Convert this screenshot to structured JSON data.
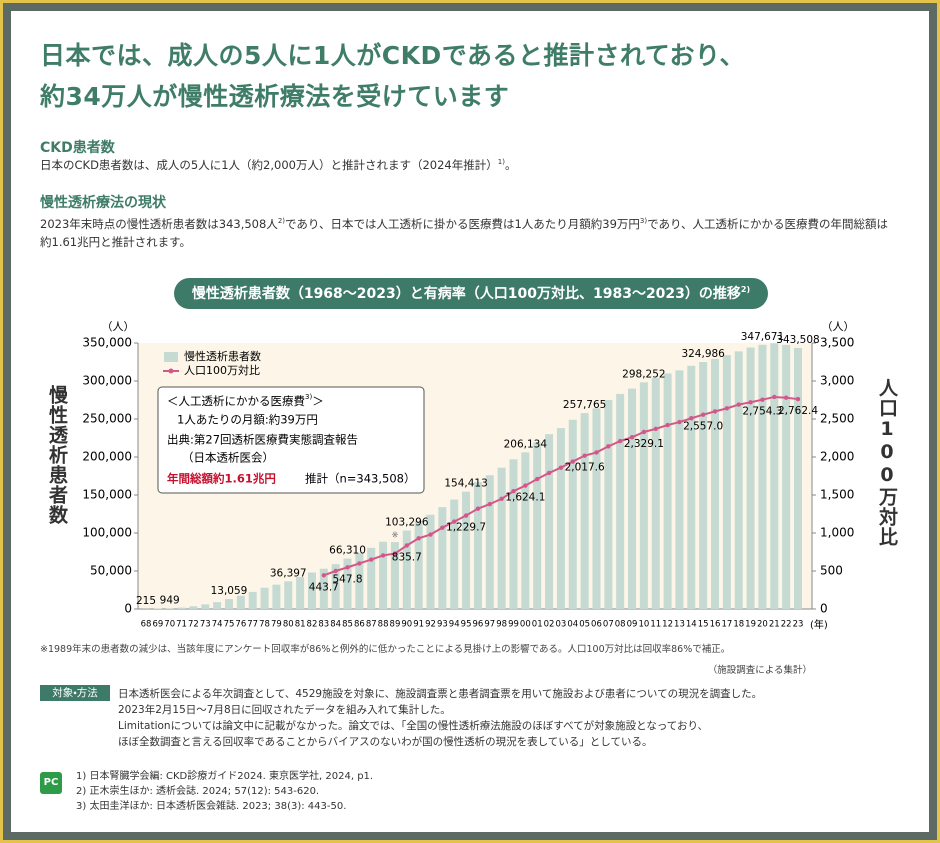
{
  "header": {
    "title_lines": [
      "日本では、成人の5人に1人がCKDであると推計されており、",
      "約34万人が慢性透析療法を受けています"
    ]
  },
  "sections": [
    {
      "heading": "CKD患者数",
      "parts": [
        "日本のCKD患者数は、成人の5人に1人（約2,000万人）と推計されます（2024年推計）",
        "1)",
        "。"
      ]
    },
    {
      "heading": "慢性透析療法の現状",
      "parts": [
        "2023年末時点の慢性透析患者数は343,508人",
        "2)",
        "であり、日本では人工透析に掛かる医療費は1人あたり月額約39万円",
        "3)",
        "であり、人工透析にかかる医療費の年間総額は約1.61兆円と推計されます。"
      ]
    }
  ],
  "chart_data": {
    "type": "bar",
    "title": "慢性透析患者数（1968～2023）と有病率（人口100万対比、1983～2023）の推移",
    "title_ref": "2)",
    "y_label": "慢性透析患者数",
    "y_unit": "（人）",
    "y2_label": "人口100万対比",
    "y2_unit": "（人）",
    "x_unit": "(年)",
    "categories": [
      "68",
      "69",
      "70",
      "71",
      "72",
      "73",
      "74",
      "75",
      "76",
      "77",
      "78",
      "79",
      "80",
      "81",
      "82",
      "83",
      "84",
      "85",
      "86",
      "87",
      "88",
      "89",
      "90",
      "91",
      "92",
      "93",
      "94",
      "95",
      "96",
      "97",
      "98",
      "99",
      "00",
      "01",
      "02",
      "03",
      "04",
      "05",
      "06",
      "07",
      "08",
      "09",
      "10",
      "11",
      "12",
      "13",
      "14",
      "15",
      "16",
      "17",
      "18",
      "19",
      "20",
      "21",
      "22",
      "23"
    ],
    "series": [
      {
        "name": "慢性透析患者数",
        "type": "bar",
        "color": "#c5dad3",
        "values": [
          215,
          600,
          949,
          1800,
          3600,
          6100,
          9000,
          13059,
          17500,
          22500,
          28000,
          32000,
          36397,
          42000,
          48000,
          53000,
          59000,
          66310,
          73500,
          80500,
          88500,
          88000,
          103296,
          116000,
          124000,
          134000,
          144000,
          154413,
          167000,
          176000,
          186000,
          197000,
          206134,
          219000,
          230000,
          238000,
          249000,
          257765,
          264000,
          275000,
          283000,
          290000,
          298252,
          304000,
          310000,
          314000,
          320000,
          324986,
          329000,
          334000,
          339000,
          344000,
          347671,
          349700,
          347500,
          343508
        ],
        "value_labels": [
          "215",
          null,
          "949",
          null,
          null,
          null,
          null,
          "13,059",
          null,
          null,
          null,
          null,
          "36,397",
          null,
          null,
          null,
          null,
          "66,310",
          null,
          null,
          null,
          null,
          "103,296",
          null,
          null,
          null,
          null,
          "154,413",
          null,
          null,
          null,
          null,
          "206,134",
          null,
          null,
          null,
          null,
          "257,765",
          null,
          null,
          null,
          null,
          "298,252",
          null,
          null,
          null,
          null,
          "324,986",
          null,
          null,
          null,
          null,
          "347,671",
          null,
          null,
          "343,508"
        ]
      },
      {
        "name": "人口100万対比",
        "type": "line",
        "axis": "y2",
        "color": "#d4578a",
        "values": [
          null,
          null,
          null,
          null,
          null,
          null,
          null,
          null,
          null,
          null,
          null,
          null,
          null,
          null,
          null,
          443.7,
          500,
          547.8,
          600,
          650,
          705,
          730,
          835.7,
          930,
          980,
          1070,
          1150,
          1229.7,
          1320,
          1380,
          1450,
          1550,
          1624.1,
          1710,
          1790,
          1860,
          1940,
          2017.6,
          2060,
          2140,
          2210,
          2260,
          2329.1,
          2370,
          2420,
          2460,
          2510,
          2557.0,
          2600,
          2640,
          2690,
          2720,
          2754.3,
          2790,
          2780,
          2762.4
        ],
        "value_labels": [
          null,
          null,
          null,
          null,
          null,
          null,
          null,
          null,
          null,
          null,
          null,
          null,
          null,
          null,
          null,
          "443.7",
          null,
          "547.8",
          null,
          null,
          null,
          null,
          "835.7",
          null,
          null,
          null,
          null,
          "1,229.7",
          null,
          null,
          null,
          null,
          "1,624.1",
          null,
          null,
          null,
          null,
          "2,017.6",
          null,
          null,
          null,
          null,
          "2,329.1",
          null,
          null,
          null,
          null,
          "2,557.0",
          null,
          null,
          null,
          null,
          "2,754.3",
          null,
          null,
          "2,762.4"
        ]
      }
    ],
    "ylim": [
      0,
      350000
    ],
    "yticks": [
      0,
      {
        "value": 50000,
        "label": "50,000"
      },
      {
        "value": 100000,
        "label": "100,000"
      },
      {
        "value": 150000,
        "label": "150,000"
      },
      {
        "value": 200000,
        "label": "200,000"
      },
      {
        "value": 250000,
        "label": "250,000"
      },
      {
        "value": 300000,
        "label": "300,000"
      },
      {
        "value": 350000,
        "label": "350,000"
      }
    ],
    "y2lim": [
      0,
      3500
    ],
    "y2ticks": [
      0,
      500,
      {
        "value": 1000,
        "label": "1,000"
      },
      {
        "value": 1500,
        "label": "1,500"
      },
      {
        "value": 2000,
        "label": "2,000"
      },
      {
        "value": 2500,
        "label": "2,500"
      },
      {
        "value": 3000,
        "label": "3,000"
      },
      {
        "value": 3500,
        "label": "3,500"
      }
    ],
    "grid": false,
    "legend": "upper left",
    "annotation": {
      "text": "※",
      "category": "89"
    },
    "inset": {
      "title": "＜人工透析にかかる医療費",
      "title_ref": "3)",
      "title_end": "＞",
      "lines": [
        "1人あたりの月額:約39万円",
        "出典:第27回透析医療費実態調査報告",
        "（日本透析医会）"
      ],
      "total": "年間総額約1.61兆円",
      "estimate": "推計（n=343,508）"
    }
  },
  "notes": {
    "footnote": "※1989年末の患者数の減少は、当該年度にアンケート回収率が86%と例外的に低かったことによる見掛け上の影響である。人口100万対比は回収率86%で補正。",
    "source": "（施設調査による集計）"
  },
  "method": {
    "label": "対象・方法",
    "lines": [
      "日本透析医会による年次調査として、4529施設を対象に、施設調査票と患者調査票を用いて施設および患者についての現況を調査した。",
      "2023年2月15日～7月8日に回収されたデータを組み入れて集計した。",
      "Limitationについては論文中に記載がなかった。論文では、「全国の慢性透析療法施設のほぼすべてが対象施設となっており、",
      "ほぼ全数調査と言える回収率であることからバイアスのないわが国の慢性透析の現況を表している」としている。"
    ]
  },
  "references": {
    "logo": "PC",
    "items": [
      "1) 日本腎臓学会編: CKD診療ガイド2024. 東京医学社, 2024, p1.",
      "2) 正木崇生ほか: 透析会誌. 2024; 57(12): 543-620.",
      "3) 太田圭洋ほか: 日本透析医会雑誌. 2023; 38(3): 443-50."
    ]
  }
}
